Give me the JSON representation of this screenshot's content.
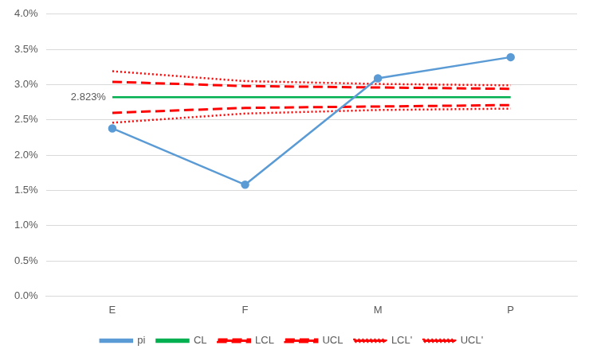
{
  "chart_data": {
    "type": "line",
    "categories": [
      "E",
      "F",
      "M",
      "P"
    ],
    "series": [
      {
        "name": "pi",
        "color": "#5b9bd5",
        "line_style": "solid",
        "marker": "circle",
        "values": [
          2.38,
          1.58,
          3.09,
          3.39
        ]
      },
      {
        "name": "CL",
        "color": "#00b050",
        "line_style": "solid",
        "marker": "none",
        "values": [
          2.823,
          2.823,
          2.823,
          2.823
        ]
      },
      {
        "name": "LCL",
        "color": "#ff0000",
        "line_style": "dashed",
        "marker": "none",
        "values": [
          2.6,
          2.67,
          2.69,
          2.71
        ]
      },
      {
        "name": "UCL",
        "color": "#ff0000",
        "line_style": "dashed",
        "marker": "none",
        "values": [
          3.04,
          2.98,
          2.96,
          2.94
        ]
      },
      {
        "name": "LCL'",
        "color": "#ff0000",
        "line_style": "dotted",
        "marker": "none",
        "values": [
          2.46,
          2.59,
          2.64,
          2.66
        ]
      },
      {
        "name": "UCL'",
        "color": "#ff0000",
        "line_style": "dotted",
        "marker": "none",
        "values": [
          3.19,
          3.05,
          3.01,
          2.99
        ]
      }
    ],
    "ylim": [
      0,
      4
    ],
    "yticks": [
      {
        "value": 0,
        "label": "0.0%"
      },
      {
        "value": 0.5,
        "label": "0.5%"
      },
      {
        "value": 1,
        "label": "1.0%"
      },
      {
        "value": 1.5,
        "label": "1.5%"
      },
      {
        "value": 2,
        "label": "2.0%"
      },
      {
        "value": 2.5,
        "label": "2.5%"
      },
      {
        "value": 3,
        "label": "3.0%"
      },
      {
        "value": 3.5,
        "label": "3.5%"
      },
      {
        "value": 4,
        "label": "4.0%"
      }
    ],
    "grid": true,
    "legend": "bottom",
    "annotations": [
      {
        "text": "2.823%",
        "x": "E",
        "y": 2.823
      }
    ]
  }
}
